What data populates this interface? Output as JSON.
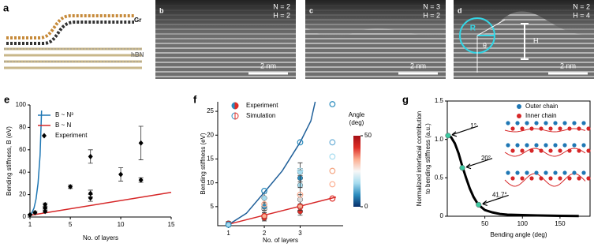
{
  "image_panels": [
    {
      "label": "a",
      "texts": [
        "Gr",
        "hBN"
      ]
    },
    {
      "label": "b",
      "texts": [
        "N = 2",
        "H = 2"
      ],
      "scale_bar": "2 nm"
    },
    {
      "label": "c",
      "texts": [
        "N = 3",
        "H = 2"
      ],
      "scale_bar": "2 nm"
    },
    {
      "label": "d",
      "texts": [
        "N = 2",
        "H = 4"
      ],
      "scale_bar": "2 nm",
      "annotations": [
        "R",
        "θ",
        "H"
      ]
    }
  ],
  "chart_data": [
    {
      "type": "line",
      "panel": "e",
      "xlabel": "No. of layers",
      "ylabel": "Bending stiffness, B (eV)",
      "xlim": [
        1,
        15
      ],
      "xticks": [
        1,
        5,
        10,
        15
      ],
      "ylim": [
        0,
        100
      ],
      "yticks": [
        0,
        20,
        40,
        60,
        80,
        100
      ],
      "legend": "upper left",
      "series": [
        {
          "name": "B ~ N³",
          "color": "#1f77b4",
          "line": true,
          "x": [
            1,
            1.2,
            1.4,
            1.6,
            1.8,
            2.0,
            2.15
          ],
          "values": [
            2,
            4,
            8,
            16,
            30,
            55,
            95
          ]
        },
        {
          "name": "B ~ N",
          "color": "#d62728",
          "line": true,
          "x": [
            1,
            15
          ],
          "values": [
            1.5,
            22
          ]
        },
        {
          "name": "Experiment",
          "color": "#000000",
          "marker": "diamond",
          "x": [
            1,
            1.5,
            2.5,
            2.5,
            2.5,
            5,
            7,
            7,
            7,
            10,
            12,
            12
          ],
          "values": [
            2,
            4,
            5,
            8,
            11,
            27,
            17,
            21,
            54,
            38,
            66,
            33
          ],
          "errors": [
            0.5,
            1,
            1,
            1,
            1.5,
            1.5,
            3,
            3,
            6,
            6,
            15,
            2
          ]
        }
      ]
    },
    {
      "type": "scatter",
      "panel": "f",
      "xlabel": "No. of layers",
      "ylabel": "Bending stiffness (eV)",
      "xlim": [
        0.7,
        4.2
      ],
      "xticks": [
        1,
        2,
        3
      ],
      "ylim": [
        1,
        27
      ],
      "yticks": [
        5,
        10,
        15,
        20,
        25
      ],
      "legend": "upper left",
      "colorbar": {
        "title_lines": [
          "Angle",
          "(deg)"
        ],
        "lim": [
          0,
          50
        ],
        "ticks": [
          0,
          50
        ],
        "colors": [
          "#08306b",
          "#2b8cbe",
          "#a6dcef",
          "#f7f7f7",
          "#fcae91",
          "#de2d26",
          "#a50f15"
        ]
      },
      "series": [
        {
          "color": "#1f5f99",
          "line": true,
          "x": [
            1,
            1.5,
            2,
            2.5,
            3,
            3.3,
            3.42
          ],
          "values": [
            1.2,
            3.6,
            8,
            12.5,
            18.5,
            23,
            27
          ]
        },
        {
          "color": "#d62728",
          "line": true,
          "x": [
            1,
            4
          ],
          "values": [
            1.3,
            7
          ]
        },
        {
          "name": "Experiment",
          "marker": "circle",
          "x": [
            1,
            1,
            2,
            2,
            2,
            2,
            2,
            3,
            3,
            3,
            3,
            3,
            3
          ],
          "values": [
            1.5,
            1.2,
            2.6,
            3.1,
            4.5,
            5.0,
            6.8,
            4,
            5.2,
            6.5,
            9.5,
            11,
            12.2
          ],
          "errors": [
            0.4,
            0.4,
            0.6,
            0.6,
            0.8,
            0.8,
            1,
            0.8,
            1,
            1,
            2,
            2,
            2
          ],
          "colors": [
            "#de2d26",
            "#a6dcef",
            "#de2d26",
            "#fcae91",
            "#d9d9d9",
            "#2b8cbe",
            "#a6dcef",
            "#de2d26",
            "#fcae91",
            "#d9d9d9",
            "#a6dcef",
            "#2b8cbe",
            "#a6dcef"
          ]
        },
        {
          "name": "Simulation",
          "marker": "circle",
          "fill": false,
          "x": [
            1,
            2,
            2,
            2,
            3,
            3,
            3,
            3,
            3.9,
            3.9,
            3.9,
            3.9,
            3.9,
            3.9
          ],
          "values": [
            1.2,
            3,
            5.5,
            8.3,
            5,
            7.5,
            12.5,
            18.5,
            6.7,
            9.7,
            12.5,
            15.5,
            18.5,
            26.5
          ],
          "colors": [
            "#2b8cbe",
            "#de2d26",
            "#fcae91",
            "#2b8cbe",
            "#de2d26",
            "#fcae91",
            "#a6dcef",
            "#2b8cbe",
            "#de2d26",
            "#fcae91",
            "#f4a582",
            "#a6dcef",
            "#6baed6",
            "#2b8cbe"
          ]
        }
      ]
    },
    {
      "type": "line",
      "panel": "g",
      "xlabel": "Bending angle (deg)",
      "ylabel": [
        "Normalized interfacial contribution",
        "to bending stiffness (a.u.)"
      ],
      "frame": true,
      "xlim": [
        0,
        190
      ],
      "xticks": [
        50,
        100,
        150
      ],
      "ylim": [
        0,
        1.5
      ],
      "yticks": [
        0,
        {
          "value": 0.5,
          "label": "0.5"
        },
        {
          "value": 1,
          "label": "1.0"
        },
        {
          "value": 1.5,
          "label": "1.5"
        }
      ],
      "schematic_legend": [
        {
          "name": "Outer chain",
          "color": "#1f77b4"
        },
        {
          "name": "Inner chain",
          "color": "#d62728"
        }
      ],
      "series": [
        {
          "color": "#000000",
          "line": true,
          "line_width": 3,
          "x": [
            1,
            5,
            10,
            15,
            20,
            25,
            30,
            35,
            40,
            45,
            50,
            60,
            70,
            80,
            100,
            120,
            150,
            175
          ],
          "values": [
            1.05,
            1.03,
            0.95,
            0.82,
            0.65,
            0.5,
            0.36,
            0.25,
            0.17,
            0.12,
            0.08,
            0.05,
            0.03,
            0.02,
            0.015,
            0.01,
            0.005,
            0.003
          ]
        },
        {
          "color": "#3cc8a0",
          "marker": "circle",
          "x": [
            1,
            20,
            41.7
          ],
          "values": [
            1.05,
            0.63,
            0.15
          ],
          "point_labels": [
            "1°",
            "20°",
            "41.7°"
          ]
        }
      ]
    }
  ]
}
